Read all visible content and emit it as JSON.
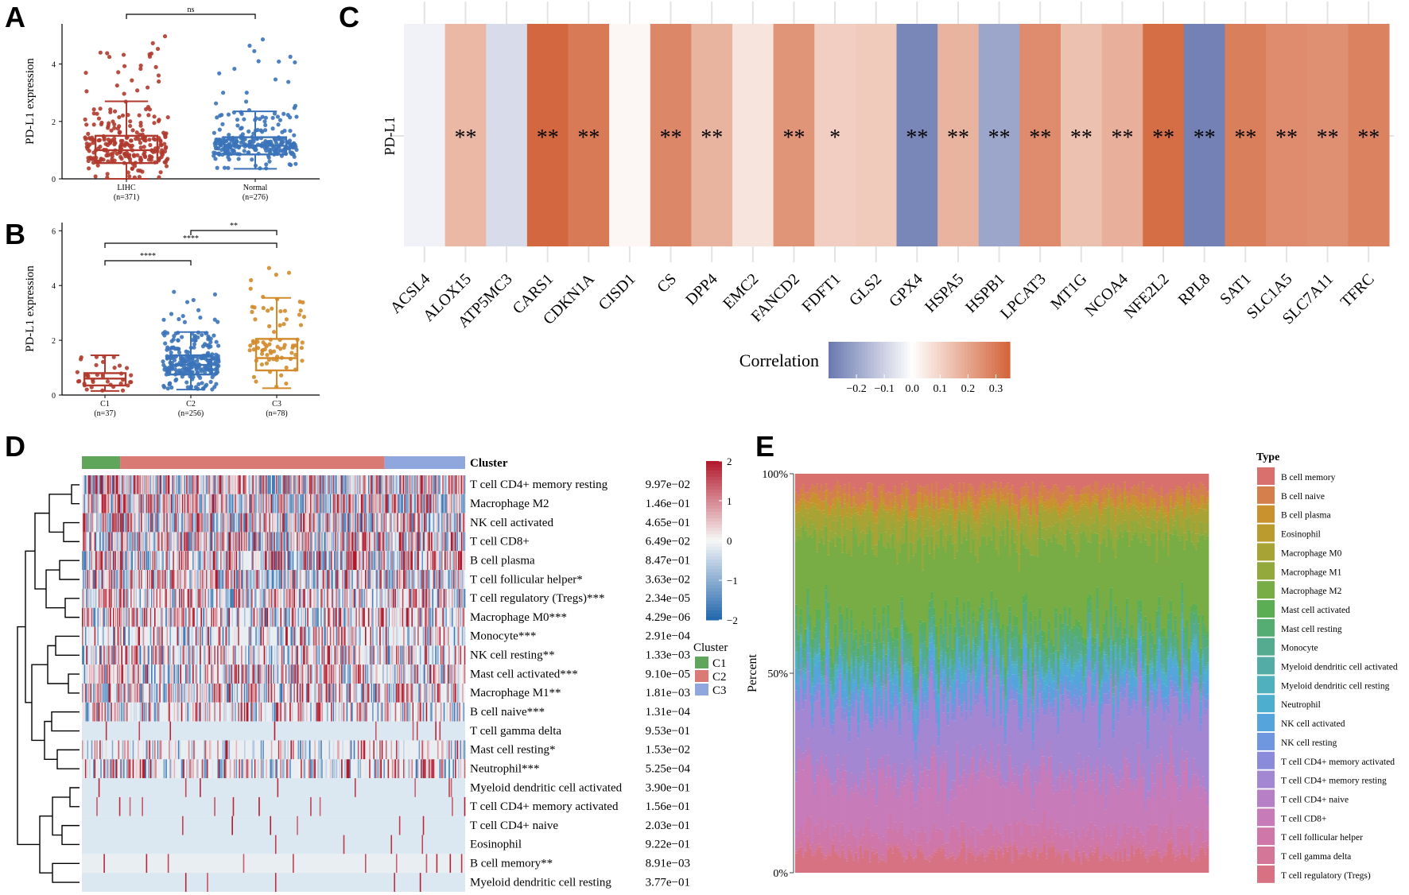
{
  "colors": {
    "red": "#b03a2e",
    "blue": "#3b73b9",
    "orange": "#d28a2a",
    "corr_neg": "#6a78b0",
    "corr_pos": "#d2643a",
    "heat_pos": "#b2182b",
    "heat_neg": "#2166ac",
    "cluster_c1": "#5fa55a",
    "cluster_c2": "#d97a74",
    "cluster_c3": "#8fa7dc"
  },
  "panels": {
    "A": "A",
    "B": "B",
    "C": "C",
    "D": "D",
    "E": "E"
  },
  "chart_data": [
    {
      "id": "A",
      "type": "box",
      "ylabel": "PD-L1  expression",
      "yticks": [
        "0",
        "2",
        "4"
      ],
      "ylim": [
        0,
        5.4
      ],
      "groups": [
        {
          "name": "LIHC",
          "n": "(n=371)",
          "q1": 0.55,
          "median": 1.0,
          "q3": 1.5,
          "whisker_low": 0.0,
          "whisker_high": 2.7,
          "max": 5.1
        },
        {
          "name": "Normal",
          "n": "(n=276)",
          "q1": 0.85,
          "median": 1.15,
          "q3": 1.45,
          "whisker_low": 0.35,
          "whisker_high": 2.35,
          "max": 5.0
        }
      ],
      "comparisons": [
        {
          "from": 0,
          "to": 1,
          "label": "ns"
        }
      ]
    },
    {
      "id": "B",
      "type": "box",
      "ylabel": "PD-L1  expression",
      "yticks": [
        "0",
        "2",
        "4",
        "6"
      ],
      "ylim": [
        0,
        6.3
      ],
      "groups": [
        {
          "name": "C1",
          "n": "(n=37)",
          "q1": 0.35,
          "median": 0.6,
          "q3": 0.8,
          "whisker_low": 0.15,
          "whisker_high": 1.45,
          "max": 1.45
        },
        {
          "name": "C2",
          "n": "(n=256)",
          "q1": 0.75,
          "median": 1.1,
          "q3": 1.45,
          "whisker_low": 0.2,
          "whisker_high": 2.3,
          "max": 3.9
        },
        {
          "name": "C3",
          "n": "(n=78)",
          "q1": 0.9,
          "median": 1.35,
          "q3": 2.05,
          "whisker_low": 0.25,
          "whisker_high": 3.55,
          "max": 4.9
        }
      ],
      "comparisons": [
        {
          "from": 0,
          "to": 1,
          "label": "****"
        },
        {
          "from": 0,
          "to": 2,
          "label": "****"
        },
        {
          "from": 1,
          "to": 2,
          "label": "**"
        }
      ]
    },
    {
      "id": "C",
      "type": "heatmap",
      "row_label": "PD-L1",
      "genes": [
        "ACSL4",
        "ALOX15",
        "ATP5MC3",
        "CARS1",
        "CDKN1A",
        "CISD1",
        "CS",
        "DPP4",
        "EMC2",
        "FANCD2",
        "FDFT1",
        "GLS2",
        "GPX4",
        "HSPA5",
        "HSPB1",
        "LPCAT3",
        "MT1G",
        "NCOA4",
        "NFE2L2",
        "RPL8",
        "SAT1",
        "SLC1A5",
        "SLC7A11",
        "TFRC"
      ],
      "correlations": [
        -0.03,
        0.16,
        -0.08,
        0.34,
        0.3,
        0.02,
        0.27,
        0.17,
        0.06,
        0.24,
        0.11,
        0.12,
        -0.27,
        0.17,
        -0.2,
        0.26,
        0.14,
        0.18,
        0.33,
        -0.28,
        0.29,
        0.26,
        0.25,
        0.28
      ],
      "stars": [
        "",
        "**",
        "",
        "**",
        "**",
        "",
        "**",
        "**",
        "",
        "**",
        "*",
        "",
        "**",
        "**",
        "**",
        "**",
        "**",
        "**",
        "**",
        "**",
        "**",
        "**",
        "**",
        "**"
      ],
      "legend_title": "Correlation",
      "legend_ticks": [
        "−0.2",
        "−0.1",
        "0.0",
        "0.1",
        "0.2",
        "0.3"
      ],
      "legend_tick_values": [
        -0.2,
        -0.1,
        0.0,
        0.1,
        0.2,
        0.3
      ],
      "range": [
        -0.3,
        0.35
      ]
    },
    {
      "id": "D",
      "type": "heatmap",
      "annotation_label": "Cluster",
      "rows": [
        {
          "label": "T cell CD4+ memory resting",
          "p": "9.97e−02",
          "density": 0.95
        },
        {
          "label": "Macrophage M2",
          "p": "1.46e−01",
          "density": 0.9
        },
        {
          "label": "NK cell activated",
          "p": "4.65e−01",
          "density": 0.9
        },
        {
          "label": "T cell CD8+",
          "p": "6.49e−02",
          "density": 0.85
        },
        {
          "label": "B cell plasma",
          "p": "8.47e−01",
          "density": 0.75
        },
        {
          "label": "T cell follicular helper*",
          "p": "3.63e−02",
          "density": 0.7
        },
        {
          "label": "T cell regulatory (Tregs)***",
          "p": "2.34e−05",
          "density": 0.7
        },
        {
          "label": "Macrophage M0***",
          "p": "4.29e−06",
          "density": 0.6
        },
        {
          "label": "Monocyte***",
          "p": "2.91e−04",
          "density": 0.4
        },
        {
          "label": "NK cell resting**",
          "p": "1.33e−03",
          "density": 0.55
        },
        {
          "label": "Mast cell activated***",
          "p": "9.10e−05",
          "density": 0.65
        },
        {
          "label": "Macrophage M1**",
          "p": "1.81e−03",
          "density": 0.7
        },
        {
          "label": "B cell naive***",
          "p": "1.31e−04",
          "density": 0.45
        },
        {
          "label": "T cell gamma delta",
          "p": "9.53e−01",
          "density": 0.15
        },
        {
          "label": "Mast cell resting*",
          "p": "1.53e−02",
          "density": 0.3
        },
        {
          "label": "Neutrophil***",
          "p": "5.25e−04",
          "density": 0.5
        },
        {
          "label": "Myeloid dendritic cell activated",
          "p": "3.90e−01",
          "density": 0.08
        },
        {
          "label": "T cell CD4+ memory activated",
          "p": "1.56e−01",
          "density": 0.1
        },
        {
          "label": "T cell CD4+ naive",
          "p": "2.03e−01",
          "density": 0.06
        },
        {
          "label": "Eosinophil",
          "p": "9.22e−01",
          "density": 0.03
        },
        {
          "label": "B cell memory**",
          "p": "8.91e−03",
          "density": 0.2
        },
        {
          "label": "Myeloid dendritic cell resting",
          "p": "3.77e−01",
          "density": 0.07
        }
      ],
      "clusters": [
        {
          "name": "C1",
          "n": 37
        },
        {
          "name": "C2",
          "n": 256
        },
        {
          "name": "C3",
          "n": 78
        }
      ],
      "colorbar_ticks": [
        "2",
        "1",
        "0",
        "−1",
        "−2"
      ],
      "colorbar_values": [
        2,
        1,
        0,
        -1,
        -2
      ],
      "legend_title": "Cluster",
      "legend_items": [
        "C1",
        "C2",
        "C3"
      ]
    },
    {
      "id": "E",
      "type": "stacked_bar",
      "ylabel": "Percent",
      "yticks": [
        "100%",
        "50%",
        "0%"
      ],
      "samples": 371,
      "legend_title": "Type",
      "types": [
        {
          "name": "B cell memory",
          "color": "#d8706d",
          "mean": 0.04
        },
        {
          "name": "B cell naive",
          "color": "#d3804d",
          "mean": 0.03
        },
        {
          "name": "B cell plasma",
          "color": "#c9922f",
          "mean": 0.02
        },
        {
          "name": "Eosinophil",
          "color": "#bb9b2e",
          "mean": 0.01
        },
        {
          "name": "Macrophage M0",
          "color": "#a8a335",
          "mean": 0.04
        },
        {
          "name": "Macrophage M1",
          "color": "#93a93b",
          "mean": 0.04
        },
        {
          "name": "Macrophage M2",
          "color": "#78ad45",
          "mean": 0.22
        },
        {
          "name": "Mast cell activated",
          "color": "#5cae55",
          "mean": 0.02
        },
        {
          "name": "Mast cell resting",
          "color": "#55ad73",
          "mean": 0.03
        },
        {
          "name": "Monocyte",
          "color": "#54ab8f",
          "mean": 0.04
        },
        {
          "name": "Myeloid dendritic cell activated",
          "color": "#54aca6",
          "mean": 0.01
        },
        {
          "name": "Myeloid dendritic cell resting",
          "color": "#50b0bd",
          "mean": 0.01
        },
        {
          "name": "Neutrophil",
          "color": "#4eaecf",
          "mean": 0.02
        },
        {
          "name": "NK cell activated",
          "color": "#55a4dc",
          "mean": 0.04
        },
        {
          "name": "NK cell resting",
          "color": "#6f97df",
          "mean": 0.02
        },
        {
          "name": "T cell CD4+ memory activated",
          "color": "#8b8bdc",
          "mean": 0.02
        },
        {
          "name": "T cell CD4+ memory resting",
          "color": "#a487d2",
          "mean": 0.16
        },
        {
          "name": "T cell CD4+ naive",
          "color": "#b77fc6",
          "mean": 0.03
        },
        {
          "name": "T cell CD8+",
          "color": "#c87bb9",
          "mean": 0.13
        },
        {
          "name": "T cell follicular helper",
          "color": "#cf77a8",
          "mean": 0.05
        },
        {
          "name": "T cell gamma delta",
          "color": "#d47697",
          "mean": 0.01
        },
        {
          "name": "T cell regulatory (Tregs)",
          "color": "#d77283",
          "mean": 0.05
        }
      ]
    }
  ]
}
